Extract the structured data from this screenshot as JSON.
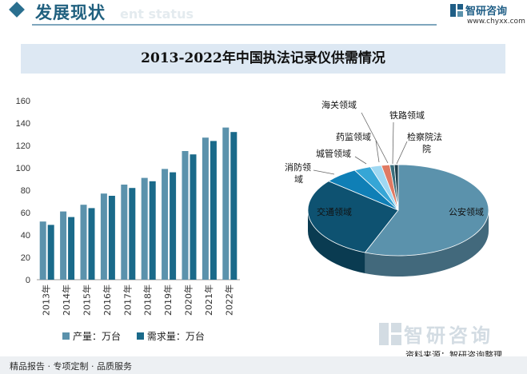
{
  "header": {
    "title": "发展现状",
    "ghost_text": "ent status",
    "brand": "智研咨询",
    "url": "www.chyxx.com"
  },
  "chart_title": "2013-2022年中国执法记录仪供需情况",
  "chart_data": [
    {
      "type": "bar",
      "categories": [
        "2013年",
        "2014年",
        "2015年",
        "2016年",
        "2017年",
        "2018年",
        "2019年",
        "2020年",
        "2021年",
        "2022年"
      ],
      "series": [
        {
          "name": "产量：万台",
          "values": [
            52,
            61,
            67,
            77,
            85,
            91,
            99,
            115,
            127,
            136
          ],
          "color": "#5b92ac"
        },
        {
          "name": "需求量：万台",
          "values": [
            49,
            56,
            64,
            75,
            82,
            88,
            96,
            112,
            124,
            132
          ],
          "color": "#1a6a8a"
        }
      ],
      "ylim": [
        0,
        160
      ],
      "yticks": [
        0,
        20,
        40,
        60,
        80,
        100,
        120,
        140,
        160
      ],
      "grid": false,
      "legend": "bottom"
    },
    {
      "type": "pie",
      "style": "3d",
      "labels": [
        "公安领域",
        "交通领域",
        "消防领域",
        "城管领域",
        "药监领域",
        "海关领域",
        "铁路领域",
        "检察院法院"
      ],
      "values": [
        56.0,
        30.0,
        6.0,
        3.0,
        2.0,
        1.5,
        0.8,
        0.7
      ],
      "colors": [
        "#5b92ac",
        "#0e5271",
        "#0f7fb6",
        "#36a6d6",
        "#9fd8f2",
        "#e07a63",
        "#3a6f7d",
        "#1e3e4c"
      ]
    }
  ],
  "watermark": "智研咨询",
  "source": "资料来源：智研咨询整理",
  "footer": "精品报告 · 专项定制 · 品质服务"
}
